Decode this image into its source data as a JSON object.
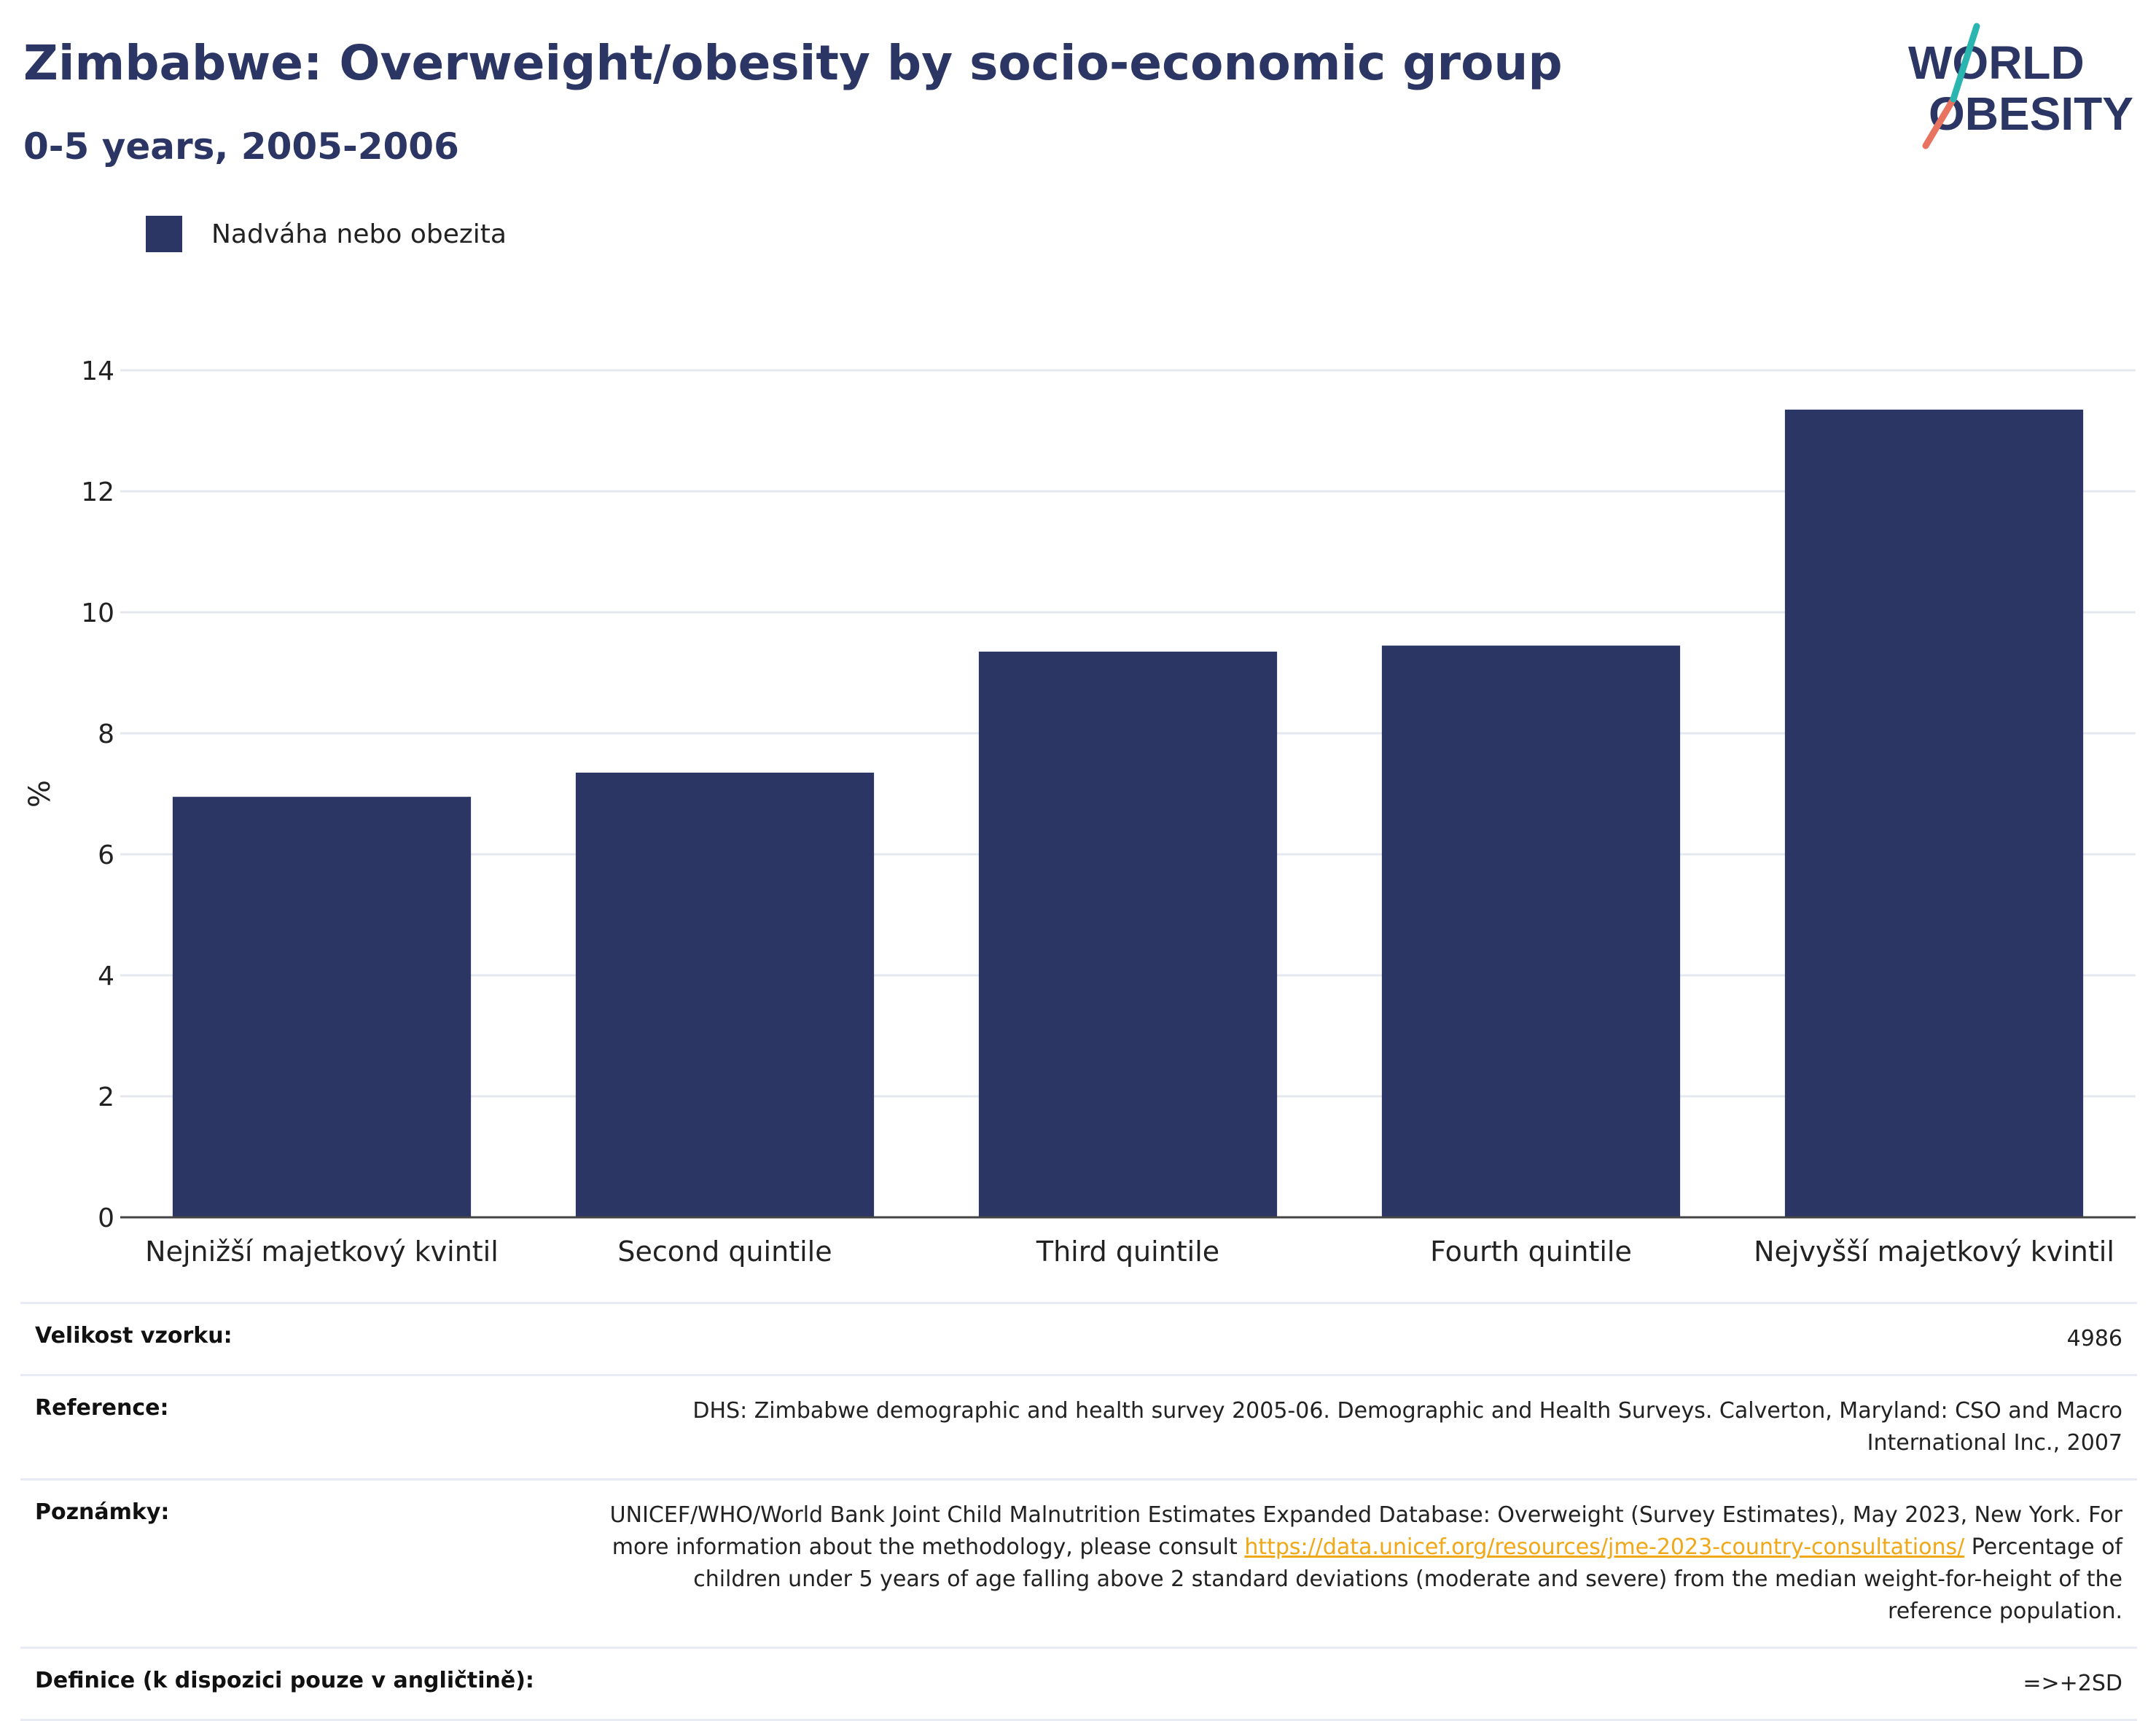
{
  "header": {
    "title": "Zimbabwe: Overweight/obesity by socio-economic group",
    "subtitle": "0-5 years, 2005-2006"
  },
  "logo": {
    "line1": "WORLD",
    "line2": "OBESITY"
  },
  "legend": {
    "label": "Nadváha nebo obezita",
    "color": "#2b3664"
  },
  "chart_data": {
    "type": "bar",
    "categories": [
      "Nejnižší majetkový kvintil",
      "Second quintile",
      "Third quintile",
      "Fourth quintile",
      "Nejvyšší majetkový kvintil"
    ],
    "series": [
      {
        "name": "Nadváha nebo obezita",
        "values": [
          6.95,
          7.35,
          9.35,
          9.45,
          13.35
        ]
      }
    ],
    "ylabel": "%",
    "xlabel": "",
    "ylim": [
      0,
      14
    ],
    "yticks": [
      0,
      2,
      4,
      6,
      8,
      10,
      12,
      14
    ],
    "grid": true,
    "bar_color": "#2b3664"
  },
  "info": {
    "sample_label": "Velikost vzorku:",
    "sample_value": "4986",
    "reference_label": "Reference:",
    "reference_value": "DHS: Zimbabwe demographic and health survey 2005-06. Demographic and Health Surveys. Calverton, Maryland: CSO and Macro International Inc., 2007",
    "notes_label": "Poznámky:",
    "notes_text1": "UNICEF/WHO/World Bank Joint Child Malnutrition Estimates Expanded Database: Overweight (Survey Estimates), May 2023, New York. For more information about the methodology, please consult",
    "notes_link": "https://data.unicef.org/resources/jme-2023-country-consultations/",
    "notes_text2": "Percentage of children under 5 years of age falling above 2 standard deviations (moderate and severe) from the median weight-for-height of the reference population.",
    "definition_label": "Definice (k dispozici pouze v angličtině):",
    "definition_value": "=>+2SD"
  }
}
